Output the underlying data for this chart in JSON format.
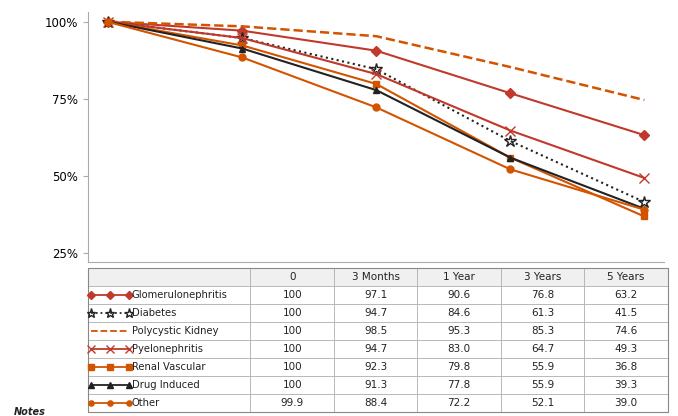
{
  "x_positions": [
    0,
    1,
    2,
    3,
    4
  ],
  "x_labels": [
    "0",
    "3 Months",
    "1 Year",
    "3 Years",
    "5 Years"
  ],
  "series": [
    {
      "name": "Glomerulonephritis",
      "values": [
        100,
        97.1,
        90.6,
        76.8,
        63.2
      ],
      "color": "#c0392b",
      "linestyle": "-",
      "marker": "D",
      "markersize": 5,
      "linewidth": 1.5
    },
    {
      "name": "Diabetes",
      "values": [
        100,
        94.7,
        84.6,
        61.3,
        41.5
      ],
      "color": "#222222",
      "linestyle": ":",
      "marker": "*",
      "markersize": 9,
      "linewidth": 1.5
    },
    {
      "name": "Polycystic Kidney",
      "values": [
        100,
        98.5,
        95.3,
        85.3,
        74.6
      ],
      "color": "#d35400",
      "linestyle": "--",
      "marker": "",
      "markersize": 0,
      "linewidth": 1.8
    },
    {
      "name": "Pyelonephritis",
      "values": [
        100,
        94.7,
        83.0,
        64.7,
        49.3
      ],
      "color": "#c0392b",
      "linestyle": "-",
      "marker": "x",
      "markersize": 7,
      "linewidth": 1.5
    },
    {
      "name": "Renal Vascular",
      "values": [
        100,
        92.3,
        79.8,
        55.9,
        36.8
      ],
      "color": "#d35400",
      "linestyle": "-",
      "marker": "s",
      "markersize": 5,
      "linewidth": 1.5
    },
    {
      "name": "Drug Induced",
      "values": [
        100,
        91.3,
        77.8,
        55.9,
        39.3
      ],
      "color": "#222222",
      "linestyle": "-",
      "marker": "^",
      "markersize": 5,
      "linewidth": 1.5
    },
    {
      "name": "Other",
      "values": [
        99.9,
        88.4,
        72.2,
        52.1,
        39.0
      ],
      "color": "#d35400",
      "linestyle": "-",
      "marker": "o",
      "markersize": 5,
      "linewidth": 1.5
    }
  ],
  "ylim": [
    22,
    103
  ],
  "yticks": [
    25,
    50,
    75,
    100
  ],
  "ytick_labels": [
    "25%",
    "50%",
    "75%",
    "100%"
  ],
  "bg_color": "#ffffff",
  "cell_values": [
    [
      "100",
      "97.1",
      "90.6",
      "76.8",
      "63.2"
    ],
    [
      "100",
      "94.7",
      "84.6",
      "61.3",
      "41.5"
    ],
    [
      "100",
      "98.5",
      "95.3",
      "85.3",
      "74.6"
    ],
    [
      "100",
      "94.7",
      "83.0",
      "64.7",
      "49.3"
    ],
    [
      "100",
      "92.3",
      "79.8",
      "55.9",
      "36.8"
    ],
    [
      "100",
      "91.3",
      "77.8",
      "55.9",
      "39.3"
    ],
    [
      "99.9",
      "88.4",
      "72.2",
      "52.1",
      "39.0"
    ]
  ]
}
